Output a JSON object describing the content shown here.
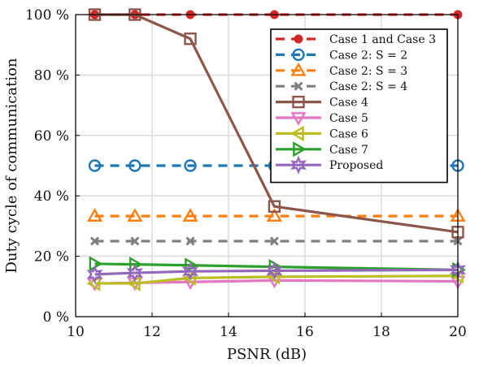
{
  "chart_data": {
    "type": "line",
    "title": "",
    "xlabel": "PSNR (dB)",
    "ylabel": "Duty cycle of communication",
    "xlim": [
      10,
      20
    ],
    "ylim": [
      0,
      100
    ],
    "xticks": [
      10,
      12,
      14,
      16,
      18,
      20
    ],
    "yticks": [
      0,
      20,
      40,
      60,
      80,
      100
    ],
    "xtick_labels": [
      "10",
      "12",
      "14",
      "16",
      "18",
      "20"
    ],
    "ytick_labels": [
      "0 %",
      "20 %",
      "40 %",
      "60 %",
      "80 %",
      "100 %"
    ],
    "grid": true,
    "legend_position": "top-right",
    "x": [
      10.5,
      11.55,
      13.0,
      15.2,
      20.0
    ],
    "series": [
      {
        "name": "Case 1 and Case 3",
        "values": [
          100,
          100,
          100,
          100,
          100
        ],
        "color": "#d62728",
        "dash": "dashed",
        "marker": "dot"
      },
      {
        "name": "Case 2: S = 2",
        "values": [
          50,
          50,
          50,
          50,
          50
        ],
        "color": "#1f77b4",
        "dash": "dashed",
        "marker": "circle"
      },
      {
        "name": "Case 2: S = 3",
        "values": [
          33.3,
          33.3,
          33.3,
          33.3,
          33.3
        ],
        "color": "#ff7f0e",
        "dash": "dashed",
        "marker": "triangle-up"
      },
      {
        "name": "Case 2: S = 4",
        "values": [
          25,
          25,
          25,
          25,
          25
        ],
        "color": "#7f7f7f",
        "dash": "dashed",
        "marker": "x"
      },
      {
        "name": "Case 4",
        "values": [
          100,
          100,
          92,
          36.5,
          28
        ],
        "color": "#8c564b",
        "dash": "solid",
        "marker": "square"
      },
      {
        "name": "Case 5",
        "values": [
          11,
          11.2,
          11.5,
          12,
          11.7
        ],
        "color": "#e377c2",
        "dash": "solid",
        "marker": "triangle-down"
      },
      {
        "name": "Case 6",
        "values": [
          11,
          11,
          12.8,
          13.2,
          13.5
        ],
        "color": "#bcbd22",
        "dash": "solid",
        "marker": "triangle-left"
      },
      {
        "name": "Case 7",
        "values": [
          17.5,
          17.3,
          17,
          16.5,
          15.5
        ],
        "color": "#2ca02c",
        "dash": "solid",
        "marker": "triangle-right"
      },
      {
        "name": "Proposed",
        "values": [
          14,
          14.5,
          15,
          15.2,
          15.5
        ],
        "color": "#9467bd",
        "dash": "solid",
        "marker": "star"
      }
    ]
  }
}
